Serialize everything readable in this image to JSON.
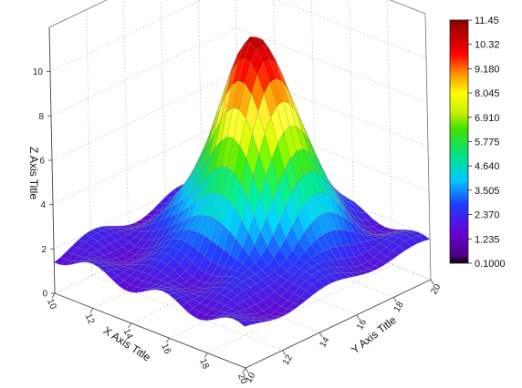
{
  "chart_data": {
    "type": "surface3d",
    "title": "",
    "xlabel": "X Axis Title",
    "ylabel": "Y Axis Title",
    "zlabel": "Z Axis Title",
    "xlim": [
      10,
      20
    ],
    "ylim": [
      10,
      20
    ],
    "zlim": [
      0,
      11.45
    ],
    "x_ticks": [
      "10",
      "12",
      "14",
      "16",
      "18",
      "20"
    ],
    "y_ticks": [
      "10",
      "12",
      "14",
      "16",
      "18",
      "20"
    ],
    "z_ticks": [
      "0",
      "2",
      "4",
      "6",
      "8",
      "10"
    ],
    "grid": true,
    "colormap": "rainbow",
    "colorbar": {
      "labels": [
        "11.45",
        "10.32",
        "9.180",
        "8.045",
        "6.910",
        "5.775",
        "4.640",
        "3.505",
        "2.370",
        "1.235",
        "0.1000"
      ],
      "min": 0.1,
      "max": 11.45
    },
    "surface": {
      "peak_z": 11.2,
      "peak_x": 15,
      "peak_y": 16,
      "base_z": 2.0,
      "max_z": 11.45,
      "min_z": 0.1
    },
    "colors": {
      "grid": "#bfbfbf",
      "mesh": "#888888"
    }
  }
}
